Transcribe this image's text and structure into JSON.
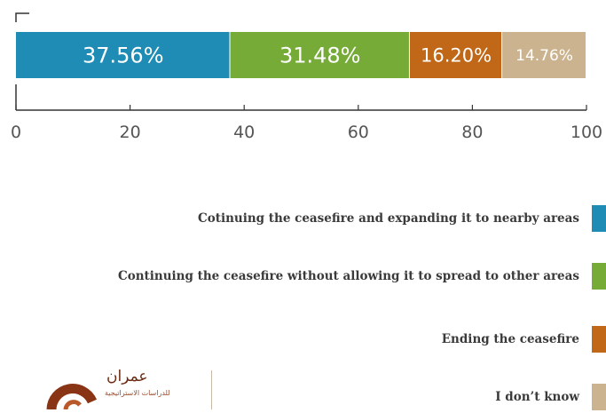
{
  "chart_data": {
    "type": "bar",
    "orientation": "horizontal-stacked",
    "xlim": [
      0,
      100
    ],
    "x_ticks": [
      "0",
      "20",
      "40",
      "60",
      "80",
      "100"
    ],
    "series": [
      {
        "name": "Cotinuing the ceasefire and expanding it to nearby areas",
        "value": 37.56,
        "label": "37.56%",
        "color": "#1e8cb4"
      },
      {
        "name": "Continuing the ceasefire without allowing it to spread to other areas",
        "value": 31.48,
        "label": "31.48%",
        "color": "#76ab38"
      },
      {
        "name": "Ending the ceasefire",
        "value": 16.2,
        "label": "16.20%",
        "color": "#c06817"
      },
      {
        "name": "I don’t know",
        "value": 14.76,
        "label": "14.76%",
        "color": "#cbb38f"
      }
    ]
  },
  "logo": {
    "arabic_name": "عمران",
    "arabic_sub": "للدراسات الاستراتيجية"
  }
}
